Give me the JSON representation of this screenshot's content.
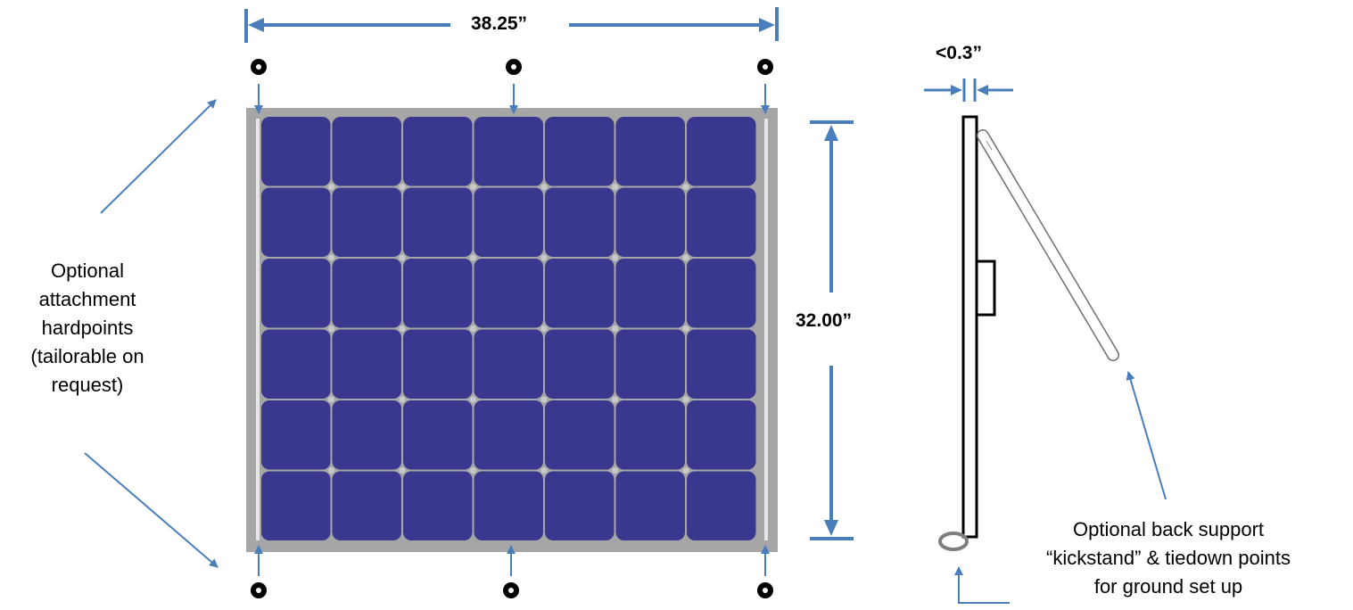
{
  "diagram": {
    "width_label": "38.25”",
    "height_label": "32.00”",
    "thickness_label": "<0.3”",
    "hardpoints_note": "Optional attachment hardpoints (tailorable on request)",
    "kickstand_note": [
      "Optional back support",
      "“kickstand” & tiedown points",
      "for ground set up"
    ],
    "panel": {
      "rows": 6,
      "columns": 7
    },
    "colors": {
      "cell": "#3a378e",
      "frame": "#a6a6a6",
      "busbar": "#e6e6e6",
      "dimension_line": "#4a7ebb",
      "arrow": "#4a7ebb",
      "grommet": "#000000",
      "ring": "#808080"
    }
  }
}
